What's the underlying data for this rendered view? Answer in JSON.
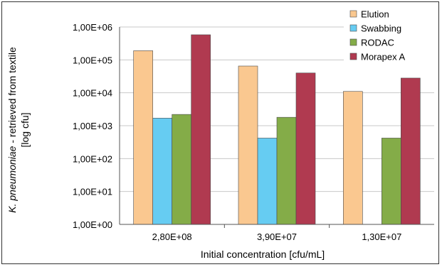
{
  "chart_data": {
    "type": "bar",
    "scale": "log",
    "title": "",
    "xlabel": "Initial concentration [cfu/mL]",
    "ylabel_line1_italic": "K. pneumoniae",
    "ylabel_line1_rest": " - retrieved from textile",
    "ylabel_line2": "[log cfu]",
    "categories": [
      "2,80E+08",
      "3,90E+07",
      "1,30E+07"
    ],
    "y_ticks": [
      {
        "label": "1,00E+00",
        "value": 1
      },
      {
        "label": "1,00E+01",
        "value": 10
      },
      {
        "label": "1,00E+02",
        "value": 100
      },
      {
        "label": "1,00E+03",
        "value": 1000
      },
      {
        "label": "1,00E+04",
        "value": 10000
      },
      {
        "label": "1,00E+05",
        "value": 100000
      },
      {
        "label": "1,00E+06",
        "value": 1000000
      }
    ],
    "ylim": [
      1,
      1000000
    ],
    "grid": "horizontal",
    "legend_position": "top-right",
    "series": [
      {
        "name": "Elution",
        "color": "#FAC890",
        "values": [
          190000,
          65000,
          11000
        ]
      },
      {
        "name": "Swabbing",
        "color": "#66CCF2",
        "values": [
          1700,
          420,
          null
        ]
      },
      {
        "name": "RODAC",
        "color": "#84AC48",
        "values": [
          2200,
          1800,
          420
        ]
      },
      {
        "name": "Morapex A",
        "color": "#B03A50",
        "values": [
          580000,
          40000,
          28000
        ]
      }
    ]
  }
}
